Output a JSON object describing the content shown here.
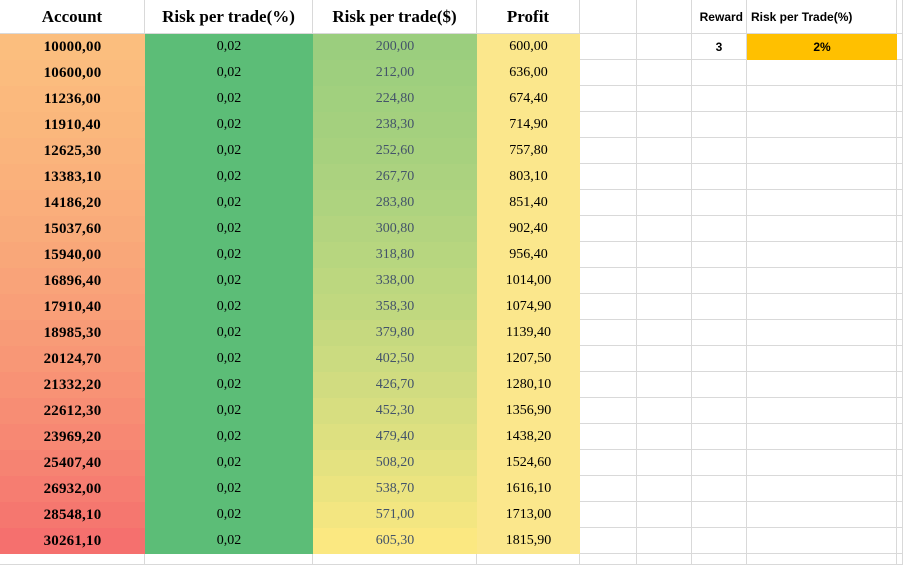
{
  "table": {
    "headers": {
      "account": "Account",
      "risk_pct": "Risk per trade(%)",
      "risk_usd": "Risk per trade($)",
      "profit": "Profit"
    },
    "rows": [
      {
        "account": "10000,00",
        "risk_pct": "0,02",
        "risk_usd": "200,00",
        "profit": "600,00",
        "account_bg": "#fbbe7e",
        "risk_usd_bg": "#9bce7e"
      },
      {
        "account": "10600,00",
        "risk_pct": "0,02",
        "risk_usd": "212,00",
        "profit": "636,00",
        "account_bg": "#fbbc7e",
        "risk_usd_bg": "#9ecf7e"
      },
      {
        "account": "11236,00",
        "risk_pct": "0,02",
        "risk_usd": "224,80",
        "profit": "674,40",
        "account_bg": "#fbb97d",
        "risk_usd_bg": "#a1d07e"
      },
      {
        "account": "11910,40",
        "risk_pct": "0,02",
        "risk_usd": "238,30",
        "profit": "714,90",
        "account_bg": "#fab77c",
        "risk_usd_bg": "#a4d07e"
      },
      {
        "account": "12625,30",
        "risk_pct": "0,02",
        "risk_usd": "252,60",
        "profit": "757,80",
        "account_bg": "#fab47c",
        "risk_usd_bg": "#a7d17e"
      },
      {
        "account": "13383,10",
        "risk_pct": "0,02",
        "risk_usd": "267,70",
        "profit": "803,10",
        "account_bg": "#fab17b",
        "risk_usd_bg": "#abd27f"
      },
      {
        "account": "14186,20",
        "risk_pct": "0,02",
        "risk_usd": "283,80",
        "profit": "851,40",
        "account_bg": "#faae7b",
        "risk_usd_bg": "#aed37f"
      },
      {
        "account": "15037,60",
        "risk_pct": "0,02",
        "risk_usd": "300,80",
        "profit": "902,40",
        "account_bg": "#f9ab7a",
        "risk_usd_bg": "#b3d47f"
      },
      {
        "account": "15940,00",
        "risk_pct": "0,02",
        "risk_usd": "318,80",
        "profit": "956,40",
        "account_bg": "#f9a779",
        "risk_usd_bg": "#b7d67f"
      },
      {
        "account": "16896,40",
        "risk_pct": "0,02",
        "risk_usd": "338,00",
        "profit": "1014,00",
        "account_bg": "#f9a379",
        "risk_usd_bg": "#bcd77f"
      },
      {
        "account": "17910,40",
        "risk_pct": "0,02",
        "risk_usd": "358,30",
        "profit": "1074,90",
        "account_bg": "#f99f78",
        "risk_usd_bg": "#c0d87f"
      },
      {
        "account": "18985,30",
        "risk_pct": "0,02",
        "risk_usd": "379,80",
        "profit": "1139,40",
        "account_bg": "#f89b77",
        "risk_usd_bg": "#c6d97f"
      },
      {
        "account": "20124,70",
        "risk_pct": "0,02",
        "risk_usd": "402,50",
        "profit": "1207,50",
        "account_bg": "#f89776",
        "risk_usd_bg": "#cbdb80"
      },
      {
        "account": "21332,20",
        "risk_pct": "0,02",
        "risk_usd": "426,70",
        "profit": "1280,10",
        "account_bg": "#f89275",
        "risk_usd_bg": "#d1dc80"
      },
      {
        "account": "22612,30",
        "risk_pct": "0,02",
        "risk_usd": "452,30",
        "profit": "1356,90",
        "account_bg": "#f78d74",
        "risk_usd_bg": "#d7de80"
      },
      {
        "account": "23969,20",
        "risk_pct": "0,02",
        "risk_usd": "479,40",
        "profit": "1438,20",
        "account_bg": "#f78873",
        "risk_usd_bg": "#dde080"
      },
      {
        "account": "25407,40",
        "risk_pct": "0,02",
        "risk_usd": "508,20",
        "profit": "1524,60",
        "account_bg": "#f68372",
        "risk_usd_bg": "#e4e280"
      },
      {
        "account": "26932,00",
        "risk_pct": "0,02",
        "risk_usd": "538,70",
        "profit": "1616,10",
        "account_bg": "#f67d71",
        "risk_usd_bg": "#ebe480"
      },
      {
        "account": "28548,10",
        "risk_pct": "0,02",
        "risk_usd": "571,00",
        "profit": "1713,00",
        "account_bg": "#f5776f",
        "risk_usd_bg": "#f3e681"
      },
      {
        "account": "30261,10",
        "risk_pct": "0,02",
        "risk_usd": "605,30",
        "profit": "1815,90",
        "account_bg": "#f5706e",
        "risk_usd_bg": "#fbe881"
      }
    ]
  },
  "side_panel": {
    "reward_label": "Reward",
    "reward_value": "3",
    "risk_label": "Risk per Trade(%)",
    "risk_value": "2%"
  },
  "colors": {
    "risk_pct_bg": "#5cbd77",
    "profit_bg": "#fbe78c",
    "risk_value_bg": "#ffc000",
    "risk_usd_text": "#44546a",
    "gridline": "#d9d9d9",
    "text": "#000000",
    "cell_white": "#ffffff"
  }
}
